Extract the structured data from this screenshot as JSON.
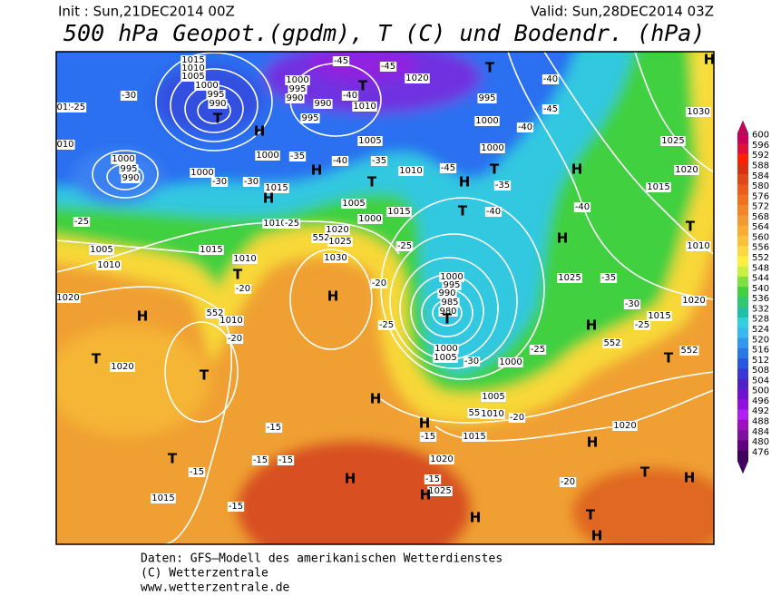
{
  "header": {
    "init": "Init : Sun,21DEC2014 00Z",
    "valid": "Valid: Sun,28DEC2014 03Z",
    "title": "500 hPa Geopot.(gpdm), T (C) und Bodendr. (hPa)"
  },
  "colorbar": {
    "labels": [
      600,
      596,
      592,
      588,
      584,
      580,
      576,
      572,
      568,
      564,
      560,
      556,
      552,
      548,
      544,
      540,
      536,
      532,
      528,
      524,
      520,
      516,
      512,
      508,
      504,
      500,
      496,
      492,
      488,
      484,
      480,
      476
    ]
  },
  "map_labels": [
    "1015",
    "1010",
    "1005",
    "1000",
    "995",
    "990",
    "T",
    "-30",
    "015",
    "-25",
    "010",
    "1000",
    "995",
    "990",
    "1000",
    "-30",
    "H",
    "1000",
    "995",
    "990",
    "990",
    "995",
    "-45",
    "-40",
    "1010",
    "T",
    "-45",
    "1020",
    "T",
    "995",
    "1000",
    "-40",
    "-45",
    "-40",
    "1000",
    "1005",
    "1000",
    "-35",
    "H",
    "-40",
    "1015",
    "H",
    "-30",
    "-35",
    "T",
    "1010",
    "1000",
    "1005",
    "1015",
    "-45",
    "H",
    "T",
    "-35",
    "-40",
    "T",
    "H",
    "-40",
    "1025",
    "1030",
    "H",
    "1020",
    "1015",
    "T",
    "1010",
    "H",
    "-25",
    "1005",
    "1010",
    "1010",
    "-25",
    "1020",
    "552",
    "1025",
    "1015",
    "1010",
    "T",
    "-20",
    "1030",
    "H",
    "-20",
    "-25",
    "1020",
    "H",
    "552",
    "1010",
    "-20",
    "T",
    "1020",
    "T",
    "1000",
    "995",
    "990",
    "985",
    "980",
    "T",
    "-25",
    "1000",
    "1005",
    "-30",
    "1000",
    "-25",
    "1025",
    "-35",
    "-30",
    "1015",
    "1020",
    "H",
    "-25",
    "552",
    "552",
    "T",
    "H",
    "1005",
    "552",
    "1010",
    "-20",
    "H",
    "-15",
    "1015",
    "1020",
    "-15",
    "1025",
    "H",
    "H",
    "-15",
    "-15",
    "-15",
    "T",
    "-15",
    "1015",
    "-15",
    "H",
    "H",
    "1020",
    "T",
    "H",
    "-20",
    "T",
    "H"
  ],
  "footer": {
    "source": "Daten: GFS–Modell des amerikanischen Wetterdienstes",
    "copyright": "(C) Wetterzentrale",
    "url": "www.wetterzentrale.de"
  }
}
